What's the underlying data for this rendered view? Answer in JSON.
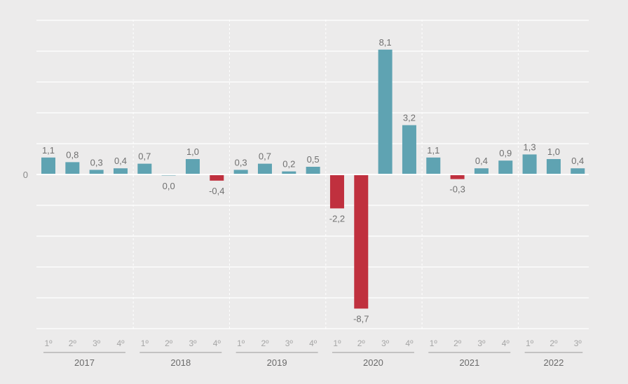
{
  "chart_data": {
    "type": "bar",
    "title": "",
    "xlabel": "",
    "ylabel": "",
    "ylim": [
      -10,
      10
    ],
    "y_tick_labels": [
      {
        "value": 0,
        "label": "0"
      }
    ],
    "grid": true,
    "colors": {
      "positive": "#5fa3b2",
      "negative": "#c0303e",
      "background": "#ecebeb",
      "grid": "#ffffff",
      "text": "#8a8a8a",
      "year_text": "#6a6a6a"
    },
    "categories": [
      {
        "year": "2017",
        "quarter": "1º",
        "value": 1.1,
        "label": "1,1"
      },
      {
        "year": "2017",
        "quarter": "2º",
        "value": 0.8,
        "label": "0,8"
      },
      {
        "year": "2017",
        "quarter": "3º",
        "value": 0.3,
        "label": "0,3"
      },
      {
        "year": "2017",
        "quarter": "4º",
        "value": 0.4,
        "label": "0,4"
      },
      {
        "year": "2018",
        "quarter": "1º",
        "value": 0.7,
        "label": "0,7"
      },
      {
        "year": "2018",
        "quarter": "2º",
        "value": 0.0,
        "label": "0,0"
      },
      {
        "year": "2018",
        "quarter": "3º",
        "value": 1.0,
        "label": "1,0"
      },
      {
        "year": "2018",
        "quarter": "4º",
        "value": -0.4,
        "label": "-0,4"
      },
      {
        "year": "2019",
        "quarter": "1º",
        "value": 0.3,
        "label": "0,3"
      },
      {
        "year": "2019",
        "quarter": "2º",
        "value": 0.7,
        "label": "0,7"
      },
      {
        "year": "2019",
        "quarter": "3º",
        "value": 0.2,
        "label": "0,2"
      },
      {
        "year": "2019",
        "quarter": "4º",
        "value": 0.5,
        "label": "0,5"
      },
      {
        "year": "2020",
        "quarter": "1º",
        "value": -2.2,
        "label": "-2,2"
      },
      {
        "year": "2020",
        "quarter": "2º",
        "value": -8.7,
        "label": "-8,7"
      },
      {
        "year": "2020",
        "quarter": "3º",
        "value": 8.1,
        "label": "8,1"
      },
      {
        "year": "2020",
        "quarter": "4º",
        "value": 3.2,
        "label": "3,2"
      },
      {
        "year": "2021",
        "quarter": "1º",
        "value": 1.1,
        "label": "1,1"
      },
      {
        "year": "2021",
        "quarter": "2º",
        "value": -0.3,
        "label": "-0,3"
      },
      {
        "year": "2021",
        "quarter": "3º",
        "value": 0.4,
        "label": "0,4"
      },
      {
        "year": "2021",
        "quarter": "4º",
        "value": 0.9,
        "label": "0,9"
      },
      {
        "year": "2022",
        "quarter": "1º",
        "value": 1.3,
        "label": "1,3"
      },
      {
        "year": "2022",
        "quarter": "2º",
        "value": 1.0,
        "label": "1,0"
      },
      {
        "year": "2022",
        "quarter": "3º",
        "value": 0.4,
        "label": "0,4"
      }
    ],
    "years": [
      "2017",
      "2018",
      "2019",
      "2020",
      "2021",
      "2022"
    ]
  }
}
